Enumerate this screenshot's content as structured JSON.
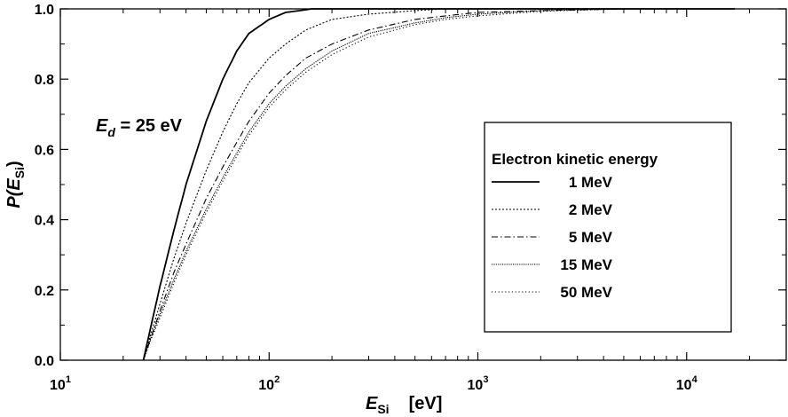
{
  "chart_data": {
    "type": "line",
    "xscale": "log",
    "xlim": [
      10,
      30000
    ],
    "ylim": [
      0,
      1
    ],
    "xticks": [
      {
        "base": "10",
        "exp": "1",
        "value": 10
      },
      {
        "base": "10",
        "exp": "2",
        "value": 100
      },
      {
        "base": "10",
        "exp": "3",
        "value": 1000
      },
      {
        "base": "10",
        "exp": "4",
        "value": 10000
      }
    ],
    "yticks": [
      "0.0",
      "0.2",
      "0.4",
      "0.6",
      "0.8",
      "1.0"
    ],
    "xlabel": {
      "main": "E",
      "sub": "Si",
      "unit": "[eV]"
    },
    "ylabel": {
      "main": "P(E",
      "sub": "Si",
      "close": ")"
    },
    "annotation": {
      "main": "E",
      "sub": "d",
      "rest": " = 25 eV"
    },
    "legend": {
      "title": "Electron kinetic energy",
      "position": "center-right"
    },
    "series": [
      {
        "name": "1 MeV",
        "dash": "solid",
        "x": [
          25,
          27,
          30,
          35,
          40,
          50,
          60,
          70,
          80,
          100,
          120,
          140,
          160,
          200,
          1000,
          17000
        ],
        "y": [
          0,
          0.09,
          0.21,
          0.37,
          0.5,
          0.68,
          0.8,
          0.88,
          0.93,
          0.97,
          0.99,
          0.995,
          1.0,
          1.0,
          1.0,
          1.0
        ]
      },
      {
        "name": "2 MeV",
        "dash": "dotted",
        "x": [
          25,
          27,
          30,
          35,
          40,
          50,
          60,
          70,
          80,
          100,
          120,
          150,
          200,
          300,
          500,
          700,
          1000,
          17000
        ],
        "y": [
          0,
          0.07,
          0.16,
          0.29,
          0.39,
          0.54,
          0.65,
          0.73,
          0.79,
          0.86,
          0.9,
          0.94,
          0.97,
          0.985,
          0.995,
          1.0,
          1.0,
          1.0
        ]
      },
      {
        "name": "5 MeV",
        "dash": "dashdot",
        "x": [
          25,
          27,
          30,
          35,
          40,
          50,
          60,
          70,
          80,
          100,
          120,
          150,
          200,
          300,
          500,
          700,
          1000,
          2000,
          5000,
          17000
        ],
        "y": [
          0,
          0.06,
          0.14,
          0.25,
          0.33,
          0.46,
          0.55,
          0.62,
          0.68,
          0.76,
          0.81,
          0.86,
          0.9,
          0.94,
          0.97,
          0.98,
          0.99,
          0.995,
          1.0,
          1.0
        ]
      },
      {
        "name": "15 MeV",
        "dash": "densedot",
        "x": [
          25,
          27,
          30,
          35,
          40,
          50,
          60,
          70,
          80,
          100,
          120,
          150,
          200,
          300,
          500,
          700,
          1000,
          2000,
          5000,
          17000
        ],
        "y": [
          0,
          0.06,
          0.13,
          0.23,
          0.31,
          0.43,
          0.52,
          0.59,
          0.65,
          0.73,
          0.78,
          0.83,
          0.88,
          0.93,
          0.96,
          0.975,
          0.985,
          0.995,
          1.0,
          1.0
        ]
      },
      {
        "name": "50 MeV",
        "dash": "sparsedot",
        "x": [
          25,
          27,
          30,
          35,
          40,
          50,
          60,
          70,
          80,
          100,
          120,
          150,
          200,
          300,
          500,
          700,
          1000,
          2000,
          5000,
          17000
        ],
        "y": [
          0,
          0.055,
          0.12,
          0.22,
          0.3,
          0.42,
          0.51,
          0.58,
          0.64,
          0.72,
          0.77,
          0.82,
          0.87,
          0.92,
          0.955,
          0.97,
          0.98,
          0.993,
          1.0,
          1.0
        ]
      }
    ]
  }
}
